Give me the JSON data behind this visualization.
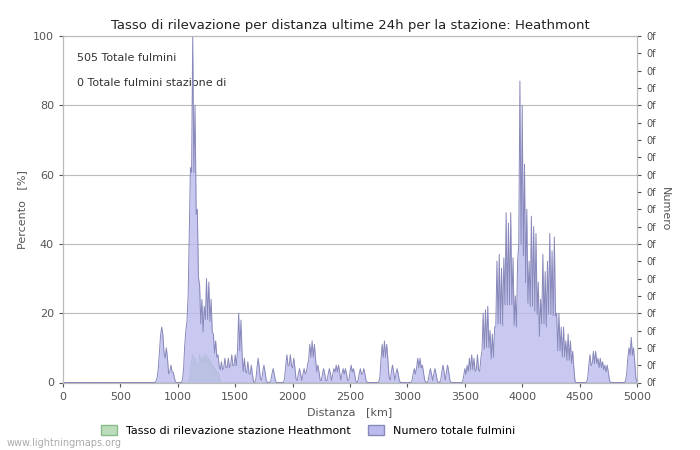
{
  "title": "Tasso di rilevazione per distanza ultime 24h per la stazione: Heathmont",
  "xlabel": "Distanza   [km]",
  "ylabel_left": "Percento   [%]",
  "ylabel_right": "Numero",
  "annotation_line1": "505 Totale fulmini",
  "annotation_line2": "0 Totale fulmini stazione di",
  "legend_label1": "Tasso di rilevazione stazione Heathmont",
  "legend_label2": "Numero totale fulmini",
  "watermark": "www.lightningmaps.org",
  "xlim": [
    0,
    5000
  ],
  "ylim": [
    0,
    100
  ],
  "xticks": [
    0,
    500,
    1000,
    1500,
    2000,
    2500,
    3000,
    3500,
    4000,
    4500,
    5000
  ],
  "yticks_left": [
    0,
    20,
    40,
    60,
    80,
    100
  ],
  "color_green": "#bbddbb",
  "color_blue": "#bbbbee",
  "color_line_blue": "#8888bb",
  "color_line_green": "#88bb88",
  "background": "#ffffff",
  "grid_color": "#bbbbbb",
  "right_tick_labels": [
    "0f",
    "0f",
    "0f",
    "0f",
    "0f",
    "0f",
    "0f",
    "0f",
    "0f",
    "0f",
    "0f",
    "0f",
    "0f",
    "0f",
    "0f",
    "0f",
    "0f",
    "0f",
    "0f",
    "0f",
    "0f"
  ],
  "right_ticks": [
    0,
    5,
    10,
    15,
    20,
    25,
    30,
    35,
    40,
    45,
    50,
    55,
    60,
    65,
    70,
    75,
    80,
    85,
    90,
    95,
    100
  ]
}
